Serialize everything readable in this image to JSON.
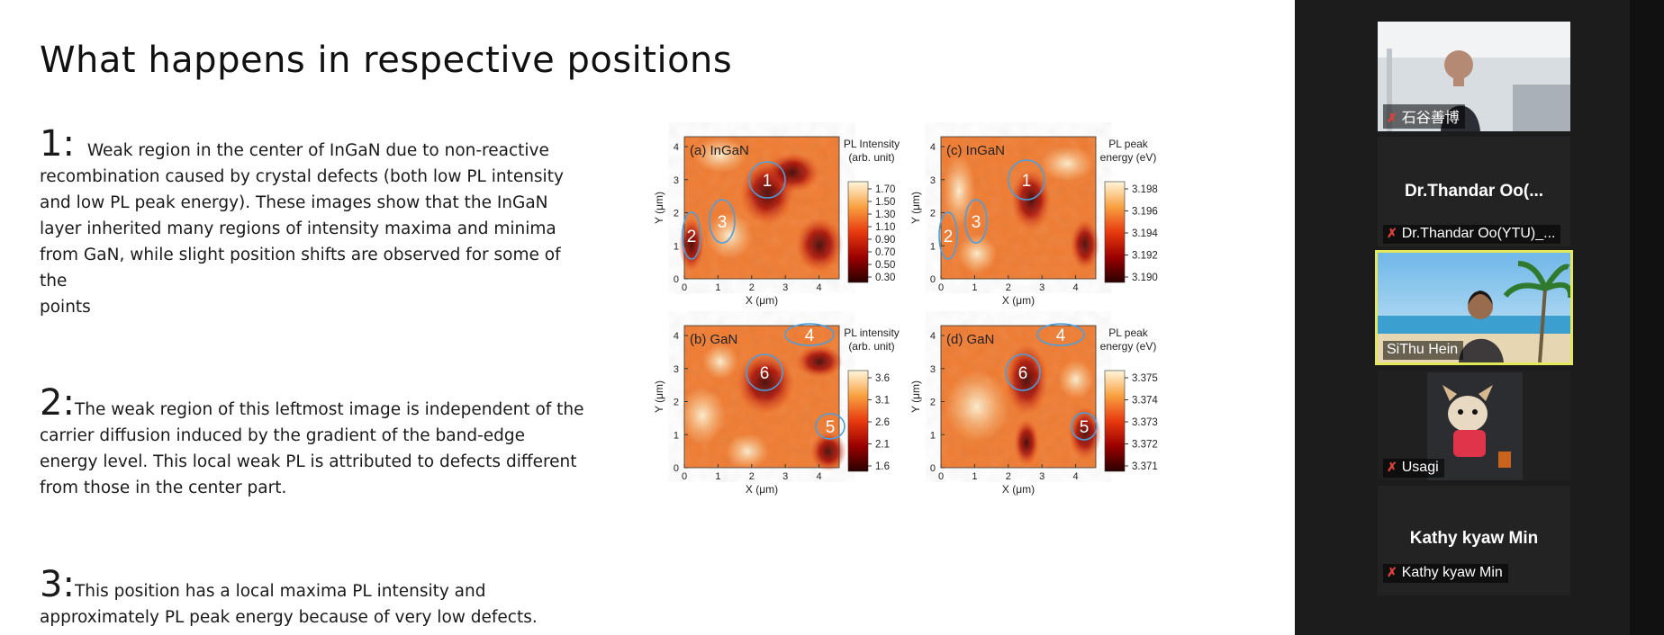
{
  "slide": {
    "title": "What happens in respective positions",
    "points": [
      {
        "number": "1:",
        "lines": [
          "Weak region in the center of InGaN due to non-reactive",
          "recombination caused by crystal defects (both low PL intensity",
          "and low PL peak energy). These images show that the InGaN",
          "layer inherited many regions of intensity maxima and minima",
          "from GaN, while slight position shifts are observed for some of",
          "the",
          "points"
        ]
      },
      {
        "number": "2:",
        "lines": [
          "The weak region of this leftmost image is independent of the",
          "carrier diffusion induced by the gradient of the band-edge",
          "energy level. This local weak PL is attributed to defects different",
          "from those in the center part."
        ]
      },
      {
        "number": "3:",
        "lines": [
          "This position has a local maxima PL intensity and",
          "approximately PL peak energy because of very low defects."
        ]
      }
    ]
  },
  "figure": {
    "panels": [
      {
        "label": "(a) InGaN",
        "colorbar_title": [
          "PL Intensity",
          "(arb. unit)"
        ],
        "colorbar_ticks": [
          "1.70",
          "1.50",
          "1.30",
          "1.10",
          "0.90",
          "0.70",
          "0.50",
          "0.30"
        ],
        "markers": [
          "1",
          "2",
          "3"
        ]
      },
      {
        "label": "(c) InGaN",
        "colorbar_title": [
          "PL peak",
          "energy (eV)"
        ],
        "colorbar_ticks": [
          "3.198",
          "3.196",
          "3.194",
          "3.192",
          "3.190"
        ],
        "markers": [
          "1",
          "2",
          "3"
        ]
      },
      {
        "label": "(b) GaN",
        "colorbar_title": [
          "PL intensity",
          "(arb. unit)"
        ],
        "colorbar_ticks": [
          "3.6",
          "3.1",
          "2.6",
          "2.1",
          "1.6"
        ],
        "markers": [
          "4",
          "6",
          "5"
        ]
      },
      {
        "label": "(d) GaN",
        "colorbar_title": [
          "PL peak",
          "energy (eV)"
        ],
        "colorbar_ticks": [
          "3.375",
          "3.374",
          "3.373",
          "3.372",
          "3.371"
        ],
        "markers": [
          "4",
          "6",
          "5"
        ]
      }
    ],
    "x_axis_label": "X (μm)",
    "y_axis_label": "Y (μm)",
    "x_ticks": [
      "0",
      "1",
      "2",
      "3",
      "4"
    ],
    "y_ticks": [
      "0",
      "1",
      "2",
      "3",
      "4"
    ]
  },
  "participants": [
    {
      "name": "石谷善博",
      "display": "",
      "muted": true,
      "video": "man"
    },
    {
      "name": "Dr.Thandar Oo(YTU)_...",
      "display": "Dr.Thandar  Oo(...",
      "muted": true,
      "video": "none"
    },
    {
      "name": "SiThu Hein",
      "display": "",
      "muted": false,
      "video": "beach",
      "speaking": true
    },
    {
      "name": "Usagi",
      "display": "",
      "muted": true,
      "video": "dog"
    },
    {
      "name": "Kathy kyaw Min",
      "display": "Kathy kyaw Min",
      "muted": true,
      "video": "none"
    }
  ],
  "icons": {
    "mute": "mic-muted-icon"
  }
}
